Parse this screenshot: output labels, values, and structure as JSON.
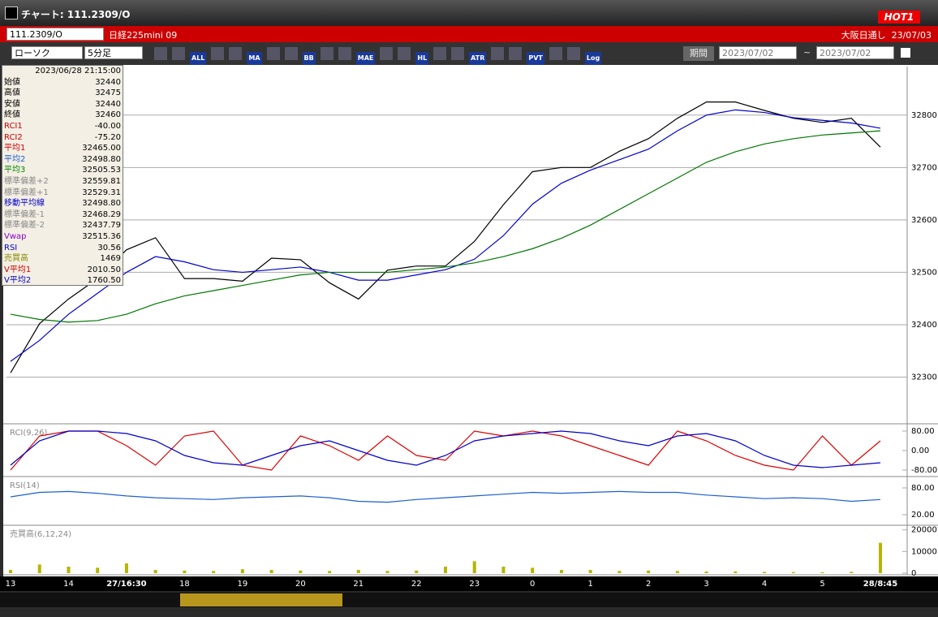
{
  "window": {
    "title": "チャート: 111.2309/O",
    "badge": "HOT1"
  },
  "toolbar1": {
    "symbol": "111.2309/O",
    "name": "日経225mini 09",
    "right": "大阪日通し  23/07/03"
  },
  "toolbar2": {
    "chart_type": "ローソク",
    "interval": "5分足",
    "buttons": [
      "ALL",
      "MA",
      "BB",
      "MAE",
      "HL",
      "ATR",
      "PVT",
      "Log"
    ],
    "period_label": "期間",
    "from": "2023/07/02",
    "tilde": "~",
    "to": "2023/07/02"
  },
  "info_panel": {
    "timestamp": "2023/06/28 21:15:00",
    "rows": [
      [
        "始値",
        "32440"
      ],
      [
        "高値",
        "32475"
      ],
      [
        "安値",
        "32440"
      ],
      [
        "終値",
        "32460"
      ],
      [
        "RCI1",
        "-40.00"
      ],
      [
        "RCI2",
        "-75.20"
      ],
      [
        "平均1",
        "32465.00"
      ],
      [
        "平均2",
        "32498.80"
      ],
      [
        "平均3",
        "32505.53"
      ],
      [
        "標準偏差+2",
        "32559.81"
      ],
      [
        "標準偏差+1",
        "32529.31"
      ],
      [
        "移動平均線",
        "32498.80"
      ],
      [
        "標準偏差-1",
        "32468.29"
      ],
      [
        "標準偏差-2",
        "32437.79"
      ],
      [
        "Vwap",
        "32515.36"
      ],
      [
        "RSI",
        "30.56"
      ],
      [
        "売買高",
        "1469"
      ],
      [
        "V平均1",
        "2010.50"
      ],
      [
        "V平均2",
        "1760.50"
      ]
    ]
  },
  "chart_data": [
    {
      "type": "line",
      "categories": [
        "13",
        null,
        "14",
        null,
        "27/16:30",
        null,
        "18",
        null,
        "19",
        null,
        "20",
        null,
        "21",
        null,
        "22",
        null,
        "23",
        null,
        "0",
        null,
        "1",
        null,
        "2",
        null,
        "3",
        null,
        "4",
        null,
        "5",
        null,
        "28/8:45"
      ],
      "series": [
        {
          "color": "#000000",
          "values": [
            32308,
            32402,
            32449,
            32488,
            32543,
            32566,
            32488,
            32488,
            32483,
            32527,
            32524,
            32480,
            32449,
            32504,
            32512,
            32512,
            32559,
            32629,
            32692,
            32700,
            32700,
            32731,
            32755,
            32794,
            32825,
            32825,
            32809,
            32794,
            32786,
            32794,
            32739
          ]
        },
        {
          "color": "#0000cc",
          "values": [
            32330,
            32370,
            32420,
            32460,
            32500,
            32530,
            32520,
            32505,
            32500,
            32505,
            32510,
            32500,
            32485,
            32485,
            32495,
            32505,
            32525,
            32570,
            32630,
            32670,
            32695,
            32715,
            32735,
            32770,
            32800,
            32810,
            32805,
            32795,
            32790,
            32785,
            32775
          ]
        },
        {
          "color": "#007700",
          "values": [
            32420,
            32410,
            32405,
            32408,
            32420,
            32440,
            32455,
            32465,
            32475,
            32485,
            32495,
            32500,
            32500,
            32500,
            32505,
            32510,
            32518,
            32530,
            32545,
            32565,
            32590,
            32620,
            32650,
            32680,
            32710,
            32730,
            32745,
            32755,
            32762,
            32766,
            32770
          ]
        }
      ],
      "ylim": [
        32214,
        32888
      ],
      "yticks": [
        32300,
        32400,
        32500,
        32600,
        32700,
        32800
      ],
      "grid": true
    },
    {
      "type": "line",
      "title": "RCI(9,26)",
      "series": [
        {
          "color": "#dd0000",
          "values": [
            -80,
            60,
            80,
            80,
            20,
            -60,
            60,
            80,
            -60,
            -80,
            60,
            20,
            -40,
            60,
            -20,
            -40,
            80,
            60,
            80,
            60,
            20,
            -20,
            -60,
            80,
            40,
            -20,
            -60,
            -80,
            60,
            -60,
            40
          ]
        },
        {
          "color": "#0000cc",
          "values": [
            -60,
            40,
            80,
            80,
            70,
            40,
            -20,
            -50,
            -60,
            -20,
            20,
            40,
            0,
            -40,
            -60,
            -20,
            40,
            60,
            70,
            80,
            70,
            40,
            20,
            60,
            70,
            40,
            -20,
            -60,
            -70,
            -60,
            -50
          ]
        }
      ],
      "ylim": [
        -100,
        100
      ],
      "yticks": [
        {
          "value": 80,
          "label": "80.00"
        },
        {
          "value": 0,
          "label": "0.00"
        },
        {
          "value": -80,
          "label": "-80.00"
        }
      ]
    },
    {
      "type": "line",
      "title": "RSI(14)",
      "series": [
        {
          "color": "#1e5fd0",
          "values": [
            60,
            70,
            72,
            68,
            62,
            58,
            56,
            54,
            58,
            60,
            62,
            58,
            50,
            48,
            54,
            58,
            62,
            66,
            70,
            68,
            70,
            72,
            70,
            70,
            64,
            60,
            56,
            58,
            56,
            50,
            54
          ]
        }
      ],
      "ylim": [
        0,
        100
      ],
      "yticks": [
        {
          "value": 80,
          "label": "80.00"
        },
        {
          "value": 20,
          "label": "20.00"
        }
      ]
    },
    {
      "type": "bar",
      "title": "売買高(6,12,24)",
      "color": "#b5b500",
      "values": [
        1500,
        4000,
        3000,
        2500,
        4500,
        1500,
        1200,
        1000,
        1800,
        1500,
        1200,
        1000,
        1500,
        1000,
        1200,
        3000,
        5500,
        3000,
        2500,
        1500,
        1500,
        1000,
        1200,
        1000,
        800,
        800,
        600,
        500,
        400,
        600,
        14000
      ],
      "ylim": [
        0,
        21000
      ],
      "yticks": [
        0,
        10000,
        20000
      ]
    }
  ]
}
